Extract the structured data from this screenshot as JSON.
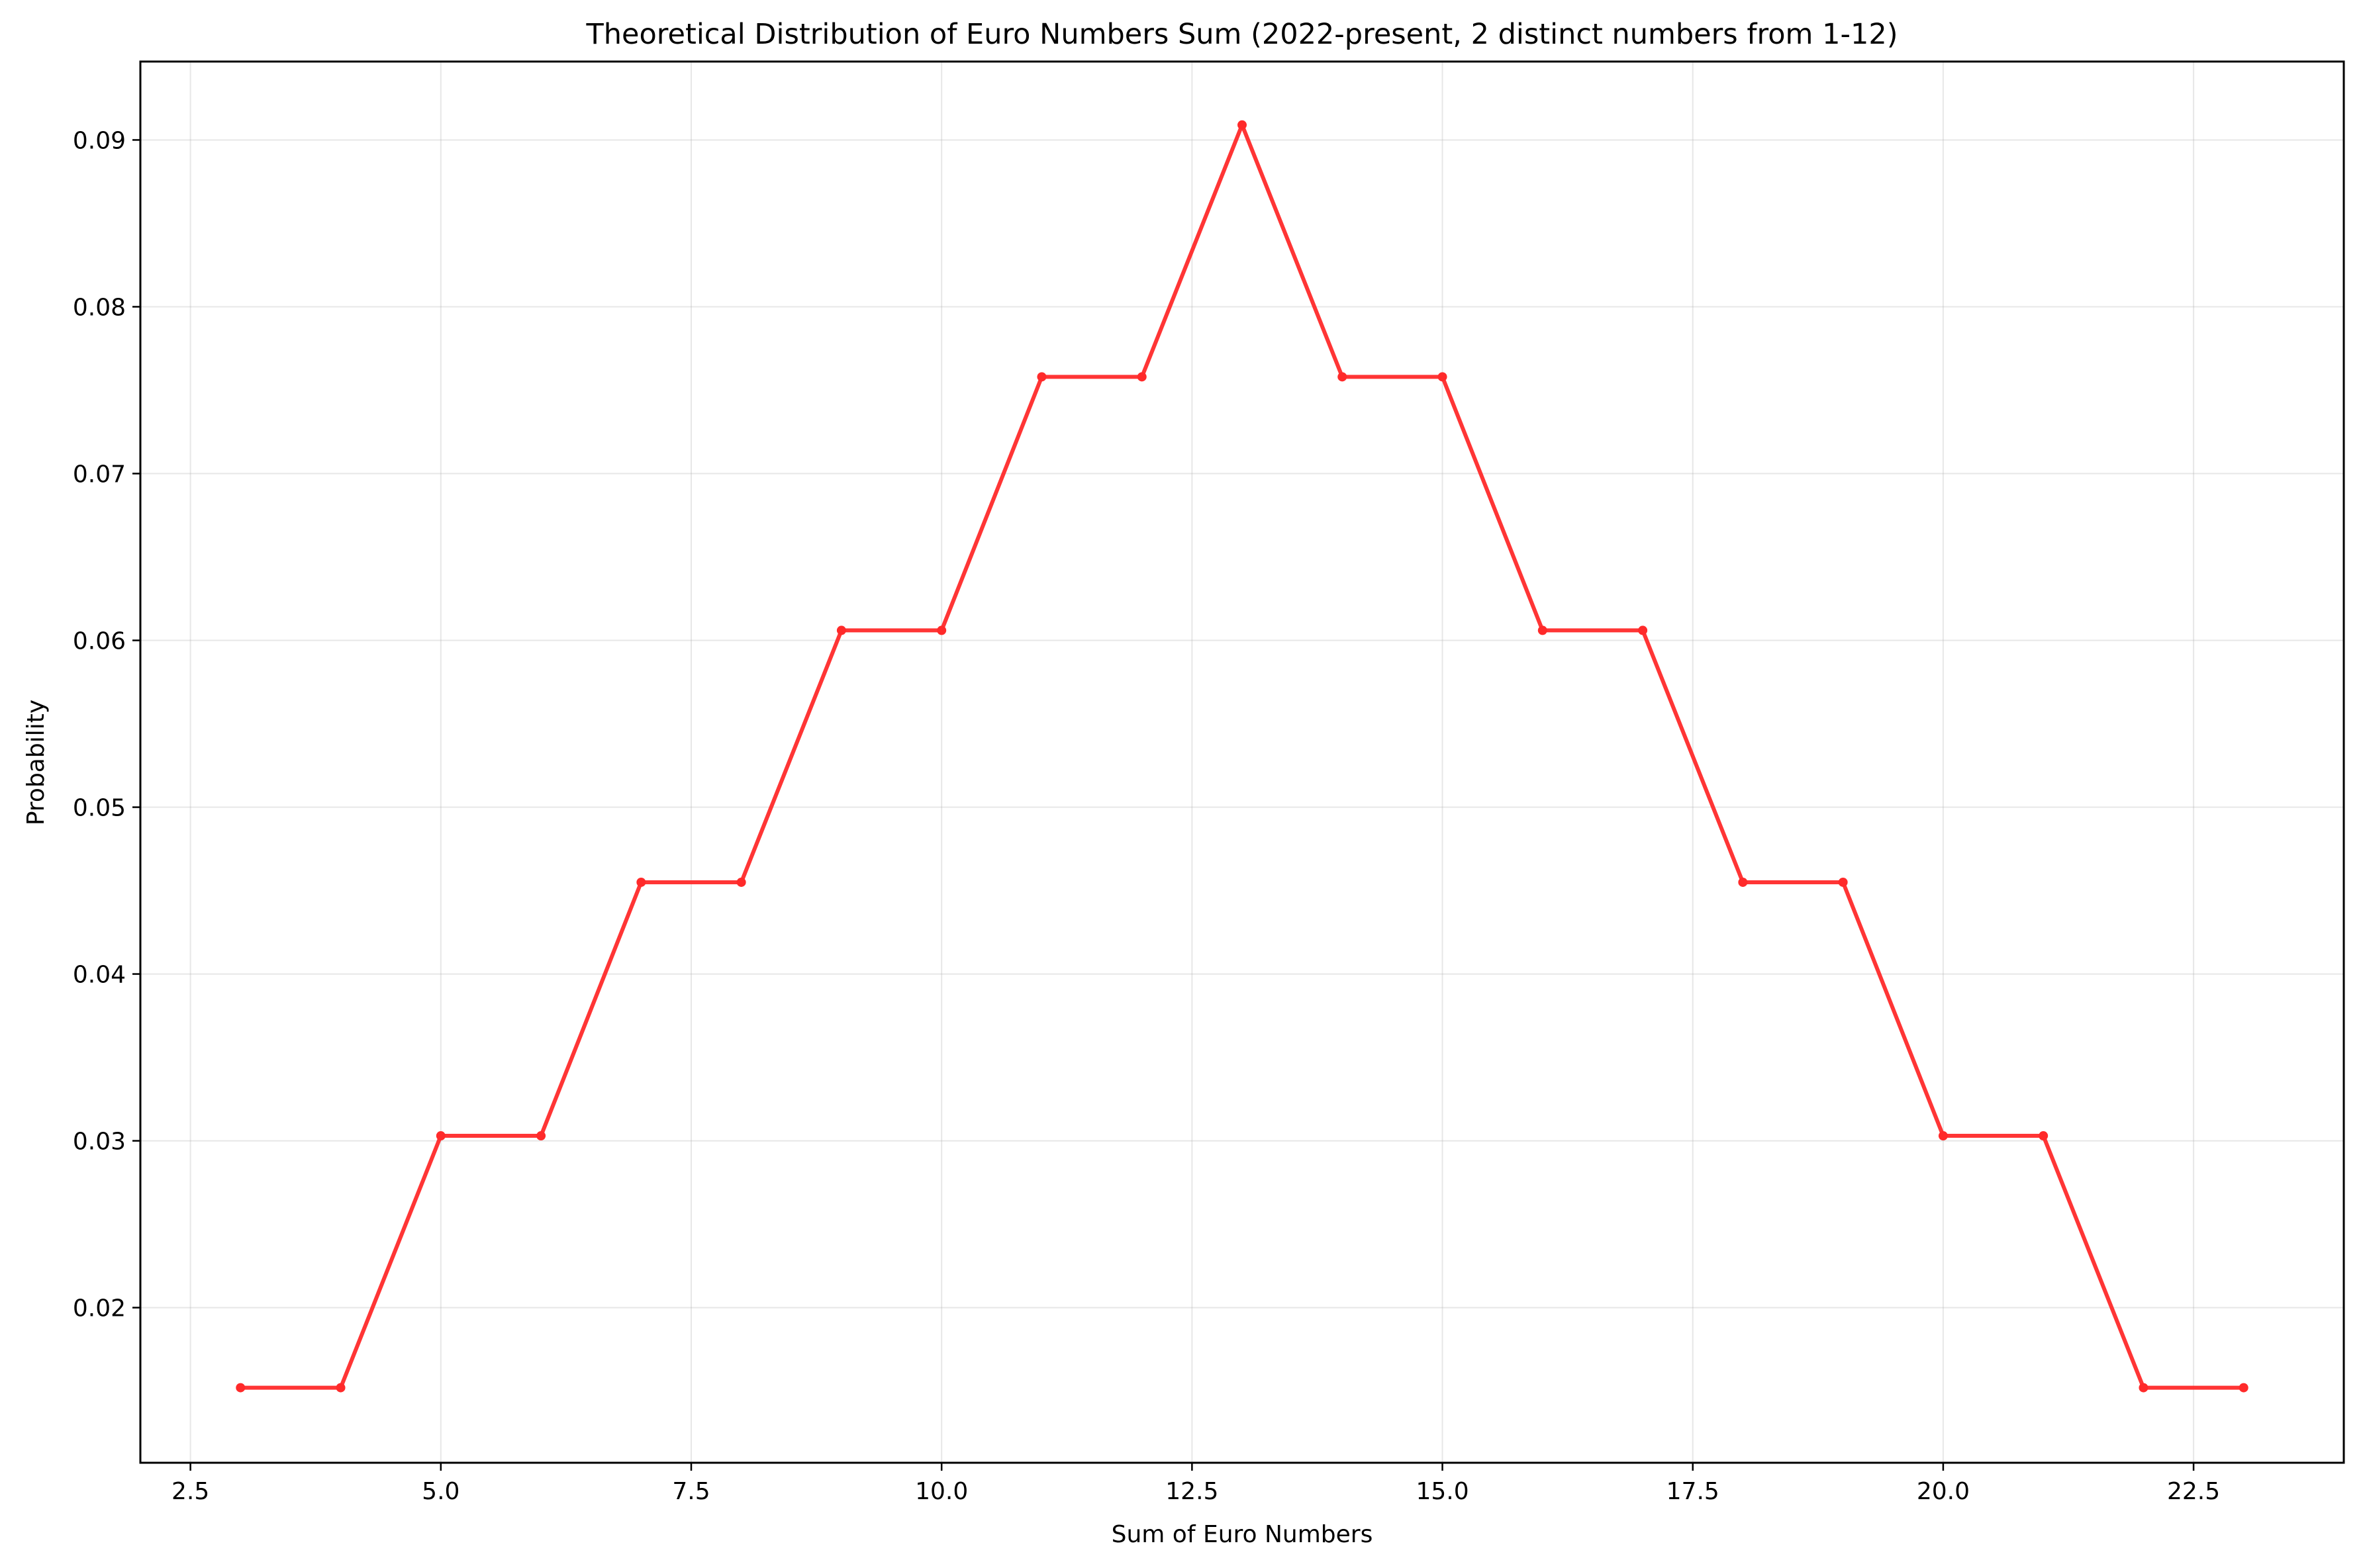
{
  "chart_data": {
    "type": "line",
    "title": "Theoretical Distribution of Euro Numbers Sum (2022-present, 2 distinct numbers from 1-12)",
    "xlabel": "Sum of Euro Numbers",
    "ylabel": "Probability",
    "xlim": [
      2.0,
      24.0
    ],
    "ylim": [
      0.0107,
      0.0947
    ],
    "x_ticks": [
      2.5,
      5.0,
      7.5,
      10.0,
      12.5,
      15.0,
      17.5,
      20.0,
      22.5
    ],
    "x_tick_labels": [
      "2.5",
      "5.0",
      "7.5",
      "10.0",
      "12.5",
      "15.0",
      "17.5",
      "20.0",
      "22.5"
    ],
    "y_ticks": [
      0.02,
      0.03,
      0.04,
      0.05,
      0.06,
      0.07,
      0.08,
      0.09
    ],
    "y_tick_labels": [
      "0.02",
      "0.03",
      "0.04",
      "0.05",
      "0.06",
      "0.07",
      "0.08",
      "0.09"
    ],
    "grid": true,
    "legend": "none",
    "series": [
      {
        "color": "#ff2a2a",
        "marker": "circle",
        "x": [
          3,
          4,
          5,
          6,
          7,
          8,
          9,
          10,
          11,
          12,
          13,
          14,
          15,
          16,
          17,
          18,
          19,
          20,
          21,
          22,
          23
        ],
        "values": [
          0.0152,
          0.0152,
          0.0303,
          0.0303,
          0.0455,
          0.0455,
          0.0606,
          0.0606,
          0.0758,
          0.0758,
          0.0909,
          0.0758,
          0.0758,
          0.0606,
          0.0606,
          0.0455,
          0.0455,
          0.0303,
          0.0303,
          0.0152,
          0.0152
        ]
      }
    ]
  }
}
